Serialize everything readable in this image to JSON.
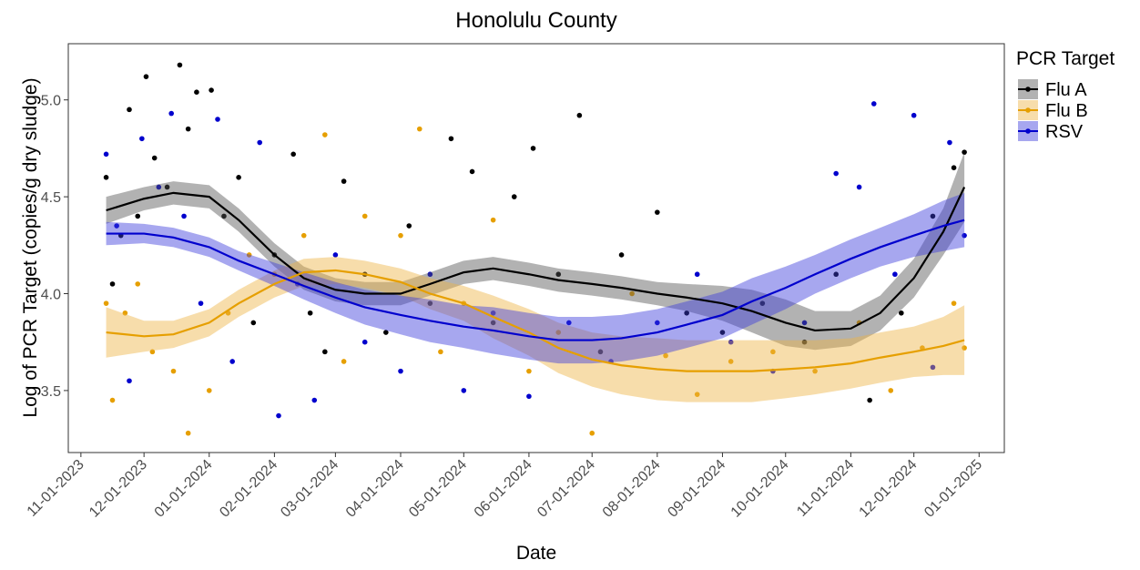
{
  "chart_data": {
    "type": "scatter",
    "title": "Honolulu County",
    "x_label": "Date",
    "y_label": "Log of PCR Target (copies/g dry sludge)",
    "legend_title": "PCR Target",
    "legend_position": "right",
    "xlim": [
      "2023-10-26",
      "2025-01-13"
    ],
    "ylim": [
      3.18,
      5.29
    ],
    "xticks": [
      {
        "value": "2023-11-01",
        "label": "11-01-2023"
      },
      {
        "value": "2023-12-01",
        "label": "12-01-2023"
      },
      {
        "value": "2024-01-01",
        "label": "01-01-2024"
      },
      {
        "value": "2024-02-01",
        "label": "02-01-2024"
      },
      {
        "value": "2024-03-01",
        "label": "03-01-2024"
      },
      {
        "value": "2024-04-01",
        "label": "04-01-2024"
      },
      {
        "value": "2024-05-01",
        "label": "05-01-2024"
      },
      {
        "value": "2024-06-01",
        "label": "06-01-2024"
      },
      {
        "value": "2024-07-01",
        "label": "07-01-2024"
      },
      {
        "value": "2024-08-01",
        "label": "08-01-2024"
      },
      {
        "value": "2024-09-01",
        "label": "09-01-2024"
      },
      {
        "value": "2024-10-01",
        "label": "10-01-2024"
      },
      {
        "value": "2024-11-01",
        "label": "11-01-2024"
      },
      {
        "value": "2024-12-01",
        "label": "12-01-2024"
      },
      {
        "value": "2025-01-01",
        "label": "01-01-2025"
      }
    ],
    "yticks": [
      3.5,
      {
        "value": 4.0,
        "label": "4.0"
      },
      4.5,
      {
        "value": 5.0,
        "label": "5.0"
      }
    ],
    "series": [
      {
        "name": "Flu A",
        "color": "#000000",
        "band_color": "#555555",
        "points": {
          "x": [
            "2023-11-13",
            "2023-11-16",
            "2023-11-20",
            "2023-11-24",
            "2023-11-28",
            "2023-12-02",
            "2023-12-06",
            "2023-12-12",
            "2023-12-18",
            "2023-12-22",
            "2023-12-26",
            "2024-01-02",
            "2024-01-08",
            "2024-01-15",
            "2024-01-22",
            "2024-02-01",
            "2024-02-10",
            "2024-02-18",
            "2024-02-25",
            "2024-03-05",
            "2024-03-15",
            "2024-03-25",
            "2024-04-05",
            "2024-04-15",
            "2024-04-25",
            "2024-05-05",
            "2024-05-15",
            "2024-05-25",
            "2024-06-03",
            "2024-06-15",
            "2024-06-25",
            "2024-07-05",
            "2024-07-15",
            "2024-08-01",
            "2024-08-15",
            "2024-09-01",
            "2024-09-20",
            "2024-10-10",
            "2024-10-25",
            "2024-11-10",
            "2024-11-25",
            "2024-12-10",
            "2024-12-20",
            "2024-12-25"
          ],
          "values": [
            4.6,
            4.05,
            4.3,
            4.95,
            4.4,
            5.12,
            4.7,
            4.55,
            5.18,
            4.85,
            5.04,
            5.05,
            4.4,
            4.6,
            3.85,
            4.2,
            4.72,
            3.9,
            3.7,
            4.58,
            4.1,
            3.8,
            4.35,
            3.95,
            4.8,
            4.63,
            3.85,
            4.5,
            4.75,
            4.1,
            4.92,
            3.7,
            4.2,
            4.42,
            3.9,
            3.8,
            3.95,
            3.75,
            4.1,
            3.45,
            3.9,
            4.4,
            4.65,
            4.73
          ]
        },
        "fit": {
          "x": [
            "2023-11-13",
            "2023-12-01",
            "2023-12-15",
            "2024-01-01",
            "2024-01-15",
            "2024-02-01",
            "2024-02-15",
            "2024-03-01",
            "2024-03-15",
            "2024-04-01",
            "2024-04-15",
            "2024-05-01",
            "2024-05-15",
            "2024-06-01",
            "2024-06-15",
            "2024-07-01",
            "2024-07-15",
            "2024-08-01",
            "2024-08-15",
            "2024-09-01",
            "2024-09-15",
            "2024-10-01",
            "2024-10-15",
            "2024-11-01",
            "2024-11-15",
            "2024-12-01",
            "2024-12-15",
            "2024-12-25"
          ],
          "values": [
            4.43,
            4.49,
            4.52,
            4.5,
            4.38,
            4.2,
            4.08,
            4.02,
            4.0,
            4.0,
            4.05,
            4.11,
            4.13,
            4.1,
            4.07,
            4.05,
            4.03,
            4.0,
            3.98,
            3.95,
            3.91,
            3.85,
            3.81,
            3.82,
            3.9,
            4.08,
            4.32,
            4.55
          ],
          "lower": [
            4.36,
            4.43,
            4.46,
            4.44,
            4.32,
            4.14,
            4.02,
            3.96,
            3.94,
            3.94,
            3.99,
            4.05,
            4.07,
            4.04,
            4.01,
            3.99,
            3.97,
            3.94,
            3.91,
            3.86,
            3.8,
            3.73,
            3.71,
            3.73,
            3.81,
            3.98,
            4.2,
            4.37
          ],
          "upper": [
            4.5,
            4.55,
            4.58,
            4.56,
            4.44,
            4.26,
            4.14,
            4.08,
            4.06,
            4.06,
            4.11,
            4.17,
            4.19,
            4.16,
            4.13,
            4.11,
            4.09,
            4.06,
            4.05,
            4.04,
            4.02,
            3.97,
            3.91,
            3.91,
            3.99,
            4.18,
            4.44,
            4.73
          ]
        }
      },
      {
        "name": "Flu B",
        "color": "#E69F00",
        "band_color": "#EDB445",
        "points": {
          "x": [
            "2023-11-13",
            "2023-11-16",
            "2023-11-22",
            "2023-11-28",
            "2023-12-05",
            "2023-12-15",
            "2023-12-22",
            "2024-01-01",
            "2024-01-10",
            "2024-01-20",
            "2024-02-01",
            "2024-02-15",
            "2024-02-25",
            "2024-03-05",
            "2024-03-15",
            "2024-04-01",
            "2024-04-10",
            "2024-04-20",
            "2024-05-01",
            "2024-05-15",
            "2024-06-01",
            "2024-06-15",
            "2024-07-01",
            "2024-07-20",
            "2024-08-05",
            "2024-08-20",
            "2024-09-05",
            "2024-09-25",
            "2024-10-15",
            "2024-11-05",
            "2024-11-20",
            "2024-12-05",
            "2024-12-20",
            "2024-12-25"
          ],
          "values": [
            3.95,
            3.45,
            3.9,
            4.05,
            3.7,
            3.6,
            3.28,
            3.5,
            3.9,
            4.2,
            4.1,
            4.3,
            4.82,
            3.65,
            4.4,
            4.3,
            4.85,
            3.7,
            3.95,
            4.38,
            3.6,
            3.8,
            3.28,
            4.0,
            3.68,
            3.48,
            3.65,
            3.7,
            3.6,
            3.85,
            3.5,
            3.72,
            3.95,
            3.72
          ]
        },
        "fit": {
          "x": [
            "2023-11-13",
            "2023-12-01",
            "2023-12-15",
            "2024-01-01",
            "2024-01-15",
            "2024-02-01",
            "2024-02-15",
            "2024-03-01",
            "2024-03-15",
            "2024-04-01",
            "2024-04-15",
            "2024-05-01",
            "2024-05-15",
            "2024-06-01",
            "2024-06-15",
            "2024-07-01",
            "2024-07-15",
            "2024-08-01",
            "2024-08-15",
            "2024-09-01",
            "2024-09-15",
            "2024-10-01",
            "2024-10-15",
            "2024-11-01",
            "2024-11-15",
            "2024-12-01",
            "2024-12-15",
            "2024-12-25"
          ],
          "values": [
            3.8,
            3.78,
            3.79,
            3.85,
            3.95,
            4.05,
            4.11,
            4.12,
            4.1,
            4.06,
            4.0,
            3.95,
            3.88,
            3.8,
            3.72,
            3.66,
            3.63,
            3.61,
            3.6,
            3.6,
            3.6,
            3.61,
            3.62,
            3.64,
            3.67,
            3.7,
            3.73,
            3.76
          ],
          "lower": [
            3.67,
            3.7,
            3.72,
            3.78,
            3.88,
            3.98,
            4.04,
            4.05,
            4.03,
            3.99,
            3.92,
            3.86,
            3.77,
            3.68,
            3.59,
            3.52,
            3.48,
            3.45,
            3.44,
            3.44,
            3.44,
            3.46,
            3.48,
            3.51,
            3.54,
            3.57,
            3.58,
            3.58
          ],
          "upper": [
            3.93,
            3.86,
            3.86,
            3.92,
            4.02,
            4.12,
            4.18,
            4.19,
            4.17,
            4.13,
            4.08,
            4.04,
            3.99,
            3.92,
            3.85,
            3.8,
            3.78,
            3.77,
            3.76,
            3.76,
            3.76,
            3.76,
            3.76,
            3.77,
            3.8,
            3.83,
            3.88,
            3.94
          ]
        }
      },
      {
        "name": "RSV",
        "color": "#0000CD",
        "band_color": "#3B3BDB",
        "points": {
          "x": [
            "2023-11-13",
            "2023-11-18",
            "2023-11-24",
            "2023-11-30",
            "2023-12-08",
            "2023-12-14",
            "2023-12-20",
            "2023-12-28",
            "2024-01-05",
            "2024-01-12",
            "2024-01-25",
            "2024-02-03",
            "2024-02-12",
            "2024-02-20",
            "2024-03-01",
            "2024-03-15",
            "2024-04-01",
            "2024-04-15",
            "2024-05-01",
            "2024-05-15",
            "2024-06-01",
            "2024-06-20",
            "2024-07-10",
            "2024-08-01",
            "2024-08-20",
            "2024-09-05",
            "2024-09-25",
            "2024-10-10",
            "2024-10-25",
            "2024-11-05",
            "2024-11-12",
            "2024-11-22",
            "2024-12-01",
            "2024-12-10",
            "2024-12-18",
            "2024-12-25"
          ],
          "values": [
            4.72,
            4.35,
            3.55,
            4.8,
            4.55,
            4.93,
            4.4,
            3.95,
            4.9,
            3.65,
            4.78,
            3.37,
            4.05,
            3.45,
            4.2,
            3.75,
            3.6,
            4.1,
            3.5,
            3.9,
            3.47,
            3.85,
            3.65,
            3.85,
            4.1,
            3.75,
            3.6,
            3.85,
            4.62,
            4.55,
            4.98,
            4.1,
            4.92,
            3.62,
            4.78,
            4.3
          ]
        },
        "fit": {
          "x": [
            "2023-11-13",
            "2023-12-01",
            "2023-12-15",
            "2024-01-01",
            "2024-01-15",
            "2024-02-01",
            "2024-02-15",
            "2024-03-01",
            "2024-03-15",
            "2024-04-01",
            "2024-04-15",
            "2024-05-01",
            "2024-05-15",
            "2024-06-01",
            "2024-06-15",
            "2024-07-01",
            "2024-07-15",
            "2024-08-01",
            "2024-08-15",
            "2024-09-01",
            "2024-09-15",
            "2024-10-01",
            "2024-10-15",
            "2024-11-01",
            "2024-11-15",
            "2024-12-01",
            "2024-12-15",
            "2024-12-25"
          ],
          "values": [
            4.31,
            4.31,
            4.29,
            4.24,
            4.17,
            4.1,
            4.04,
            3.98,
            3.93,
            3.89,
            3.86,
            3.83,
            3.81,
            3.78,
            3.76,
            3.76,
            3.77,
            3.8,
            3.84,
            3.89,
            3.96,
            4.03,
            4.1,
            4.18,
            4.24,
            4.3,
            4.35,
            4.38
          ],
          "lower": [
            4.25,
            4.26,
            4.24,
            4.19,
            4.12,
            4.04,
            3.97,
            3.9,
            3.84,
            3.79,
            3.75,
            3.72,
            3.69,
            3.66,
            3.64,
            3.64,
            3.65,
            3.68,
            3.72,
            3.77,
            3.84,
            3.92,
            4.0,
            4.08,
            4.14,
            4.19,
            4.22,
            4.24
          ],
          "upper": [
            4.37,
            4.36,
            4.34,
            4.29,
            4.22,
            4.16,
            4.11,
            4.06,
            4.02,
            3.99,
            3.97,
            3.94,
            3.93,
            3.9,
            3.88,
            3.88,
            3.89,
            3.92,
            3.96,
            4.01,
            4.08,
            4.14,
            4.2,
            4.28,
            4.34,
            4.41,
            4.48,
            4.52
          ]
        }
      }
    ]
  }
}
